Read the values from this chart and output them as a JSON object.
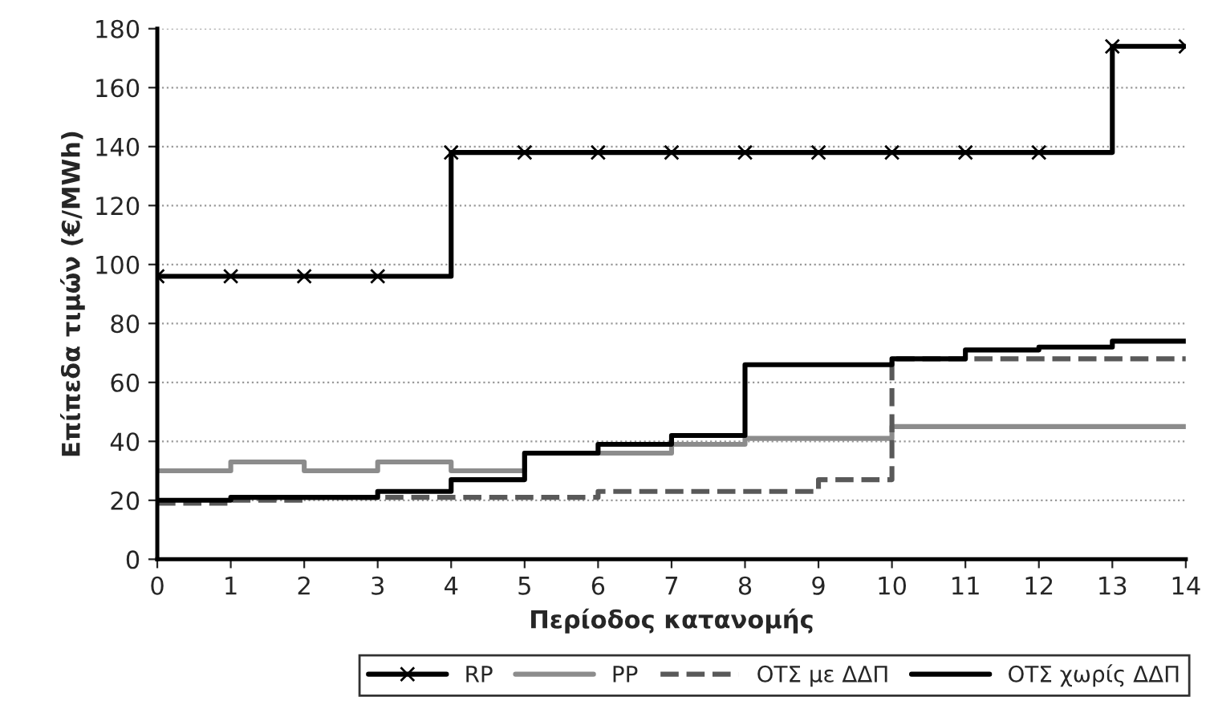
{
  "chart_data": {
    "type": "step",
    "xlabel": "Περίοδος κατανομής",
    "ylabel": "Επίπεδα τιμών (€/MWh)",
    "x": [
      0,
      1,
      2,
      3,
      4,
      5,
      6,
      7,
      8,
      9,
      10,
      11,
      12,
      13,
      14
    ],
    "series": [
      {
        "name": "RP",
        "color": "#000000",
        "marker": "cross",
        "line_style": "solid",
        "values": [
          96,
          96,
          96,
          96,
          138,
          138,
          138,
          138,
          138,
          138,
          138,
          138,
          138,
          174,
          174
        ]
      },
      {
        "name": "PP",
        "color": "#8c8c8c",
        "marker": "none",
        "line_style": "solid",
        "values": [
          30,
          33,
          30,
          33,
          30,
          36,
          36,
          39,
          41,
          41,
          45,
          45,
          45,
          45,
          45
        ]
      },
      {
        "name": "ΟΤΣ με ΔΔΠ",
        "color": "#595959",
        "marker": "none",
        "line_style": "dashed",
        "values": [
          19,
          20,
          21,
          21,
          21,
          21,
          23,
          23,
          23,
          27,
          68,
          68,
          68,
          68,
          68
        ]
      },
      {
        "name": "ΟΤΣ χωρίς ΔΔΠ",
        "color": "#000000",
        "marker": "none",
        "line_style": "solid",
        "values": [
          20,
          21,
          21,
          23,
          27,
          36,
          39,
          42,
          66,
          66,
          68,
          71,
          72,
          74,
          74
        ]
      }
    ],
    "xlim": [
      0,
      14
    ],
    "xticks": [
      0,
      1,
      2,
      3,
      4,
      5,
      6,
      7,
      8,
      9,
      10,
      11,
      12,
      13,
      14
    ],
    "ylim": [
      0,
      180
    ],
    "yticks": [
      0,
      20,
      40,
      60,
      80,
      100,
      120,
      140,
      160,
      180
    ],
    "grid": "y",
    "legend": "bottom"
  }
}
